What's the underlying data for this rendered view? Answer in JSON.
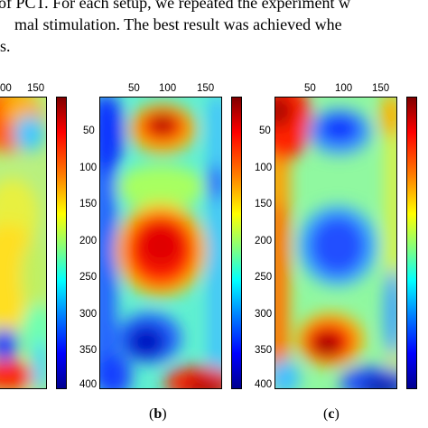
{
  "caption": {
    "line1": "of PCT. For each setup, we repeated the experiment w",
    "line2": "mal stimulation. The best result was achieved whe",
    "line3": "s."
  },
  "panels": [
    {
      "id": "a",
      "xticks": [
        "00",
        "150"
      ],
      "yticks": [],
      "label": ""
    },
    {
      "id": "b",
      "xticks": [
        "50",
        "100",
        "150"
      ],
      "yticks": [
        "50",
        "100",
        "150",
        "200",
        "250",
        "300",
        "350",
        "400"
      ],
      "label": "(b)"
    },
    {
      "id": "c",
      "xticks": [
        "50",
        "100",
        "150"
      ],
      "yticks": [
        "50",
        "100",
        "150",
        "200",
        "250",
        "300",
        "350",
        "400"
      ],
      "label": "(c)"
    }
  ],
  "colors": {
    "dark_red": "#8b0000",
    "red": "#ff1a00",
    "yellow": "#ffff00",
    "cyan": "#40f0ff",
    "blue": "#1040ff",
    "dark_blue": "#000090"
  }
}
